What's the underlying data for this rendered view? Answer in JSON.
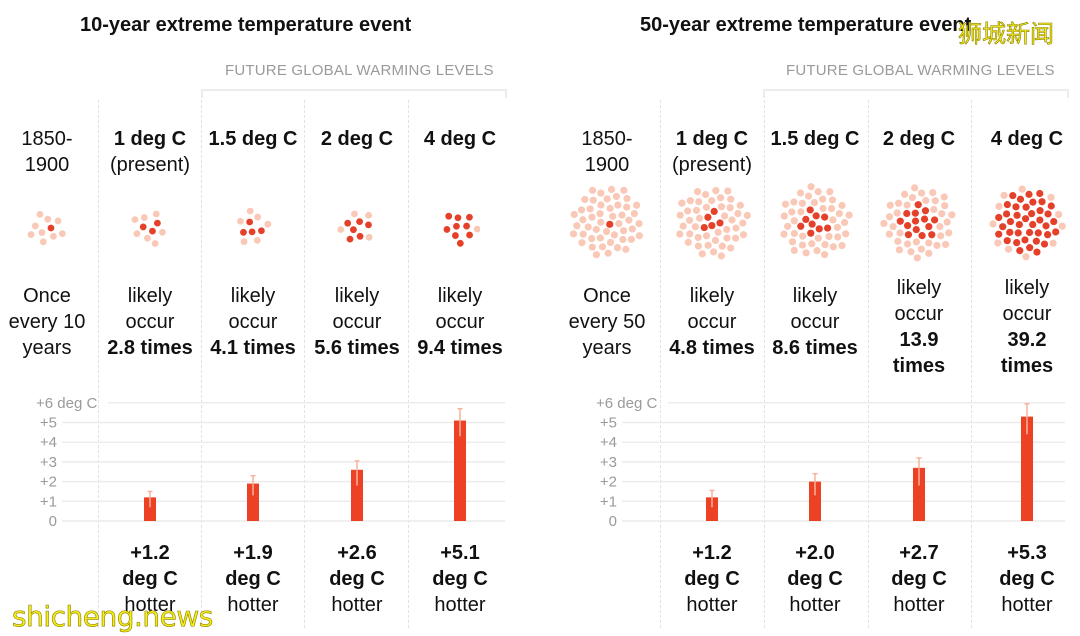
{
  "colors": {
    "bar": "#ec4125",
    "error_bar": "#f7b39a",
    "dot_light": "#f9c8b6",
    "dot_dark": "#e5412a",
    "grid": "#ececec",
    "axis_text": "#9a9a9a"
  },
  "watermarks": {
    "cn": "狮城新闻",
    "en": "shicheng.news"
  },
  "panels": [
    {
      "title": "10-year extreme temperature event",
      "future_label": "FUTURE GLOBAL WARMING LEVELS",
      "columns": [
        {
          "head_bold": "",
          "head_normal": "1850-\n1900",
          "text_normal": "Once\nevery 10\nyears",
          "text_bold": "",
          "dots_total": 10,
          "dots_dark": 1
        },
        {
          "head_bold": "1 deg C",
          "head_normal": "(present)",
          "text_normal": "likely\noccur",
          "text_bold": "2.8 times",
          "dots_total": 10,
          "dots_dark": 3,
          "foot_bold": "+1.2\ndeg C",
          "foot_normal": "hotter"
        },
        {
          "head_bold": "1.5 deg C",
          "head_normal": "",
          "text_normal": "likely\noccur",
          "text_bold": "4.1 times",
          "dots_total": 10,
          "dots_dark": 4,
          "foot_bold": "+1.9\ndeg C",
          "foot_normal": "hotter"
        },
        {
          "head_bold": "2 deg C",
          "head_normal": "",
          "text_normal": "likely\noccur",
          "text_bold": "5.6 times",
          "dots_total": 10,
          "dots_dark": 6,
          "foot_bold": "+2.6\ndeg C",
          "foot_normal": "hotter"
        },
        {
          "head_bold": "4 deg C",
          "head_normal": "",
          "text_normal": "likely\noccur",
          "text_bold": "9.4 times",
          "dots_total": 10,
          "dots_dark": 9,
          "foot_bold": "+5.1\ndeg C",
          "foot_normal": "hotter"
        }
      ]
    },
    {
      "title": "50-year extreme temperature event",
      "future_label": "FUTURE GLOBAL WARMING LEVELS",
      "columns": [
        {
          "head_bold": "",
          "head_normal": "1850-\n1900",
          "text_normal": "Once\nevery 50\nyears",
          "text_bold": "",
          "dots_total": 50,
          "dots_dark": 1
        },
        {
          "head_bold": "1 deg C",
          "head_normal": "(present)",
          "text_normal": "likely\noccur",
          "text_bold": "4.8 times",
          "dots_total": 50,
          "dots_dark": 5,
          "foot_bold": "+1.2\ndeg C",
          "foot_normal": "hotter"
        },
        {
          "head_bold": "1.5 deg C",
          "head_normal": "",
          "text_normal": "likely\noccur",
          "text_bold": "8.6 times",
          "dots_total": 50,
          "dots_dark": 9,
          "foot_bold": "+2.0\ndeg C",
          "foot_normal": "hotter"
        },
        {
          "head_bold": "2 deg C",
          "head_normal": "",
          "text_normal": "likely\noccur",
          "text_bold": "13.9\ntimes",
          "dots_total": 50,
          "dots_dark": 14,
          "foot_bold": "+2.7\ndeg C",
          "foot_normal": "hotter"
        },
        {
          "head_bold": "4 deg C",
          "head_normal": "",
          "text_normal": "likely\noccur",
          "text_bold": "39.2\ntimes",
          "dots_total": 50,
          "dots_dark": 39,
          "foot_bold": "+5.3\ndeg C",
          "foot_normal": "hotter"
        }
      ]
    }
  ],
  "chart_data": [
    {
      "type": "bar",
      "title": "10-year extreme temperature event",
      "categories": [
        "1850-1900",
        "1 deg C (present)",
        "1.5 deg C",
        "2 deg C",
        "4 deg C"
      ],
      "values": [
        null,
        1.2,
        1.9,
        2.6,
        5.1
      ],
      "error_low": [
        null,
        0.7,
        1.3,
        1.8,
        4.3
      ],
      "error_high": [
        null,
        1.5,
        2.3,
        3.05,
        5.7
      ],
      "ylabel": "",
      "yticks": [
        "0",
        "+1",
        "+2",
        "+3",
        "+4",
        "+5",
        "+6 deg C"
      ],
      "ylim": [
        0,
        6
      ],
      "grid": true
    },
    {
      "type": "bar",
      "title": "50-year extreme temperature event",
      "categories": [
        "1850-1900",
        "1 deg C (present)",
        "1.5 deg C",
        "2 deg C",
        "4 deg C"
      ],
      "values": [
        null,
        1.2,
        2.0,
        2.7,
        5.3
      ],
      "error_low": [
        null,
        0.7,
        1.3,
        1.8,
        4.4
      ],
      "error_high": [
        null,
        1.55,
        2.4,
        3.2,
        5.95
      ],
      "ylabel": "",
      "yticks": [
        "0",
        "+1",
        "+2",
        "+3",
        "+4",
        "+5",
        "+6 deg C"
      ],
      "ylim": [
        0,
        6
      ],
      "grid": true
    }
  ]
}
